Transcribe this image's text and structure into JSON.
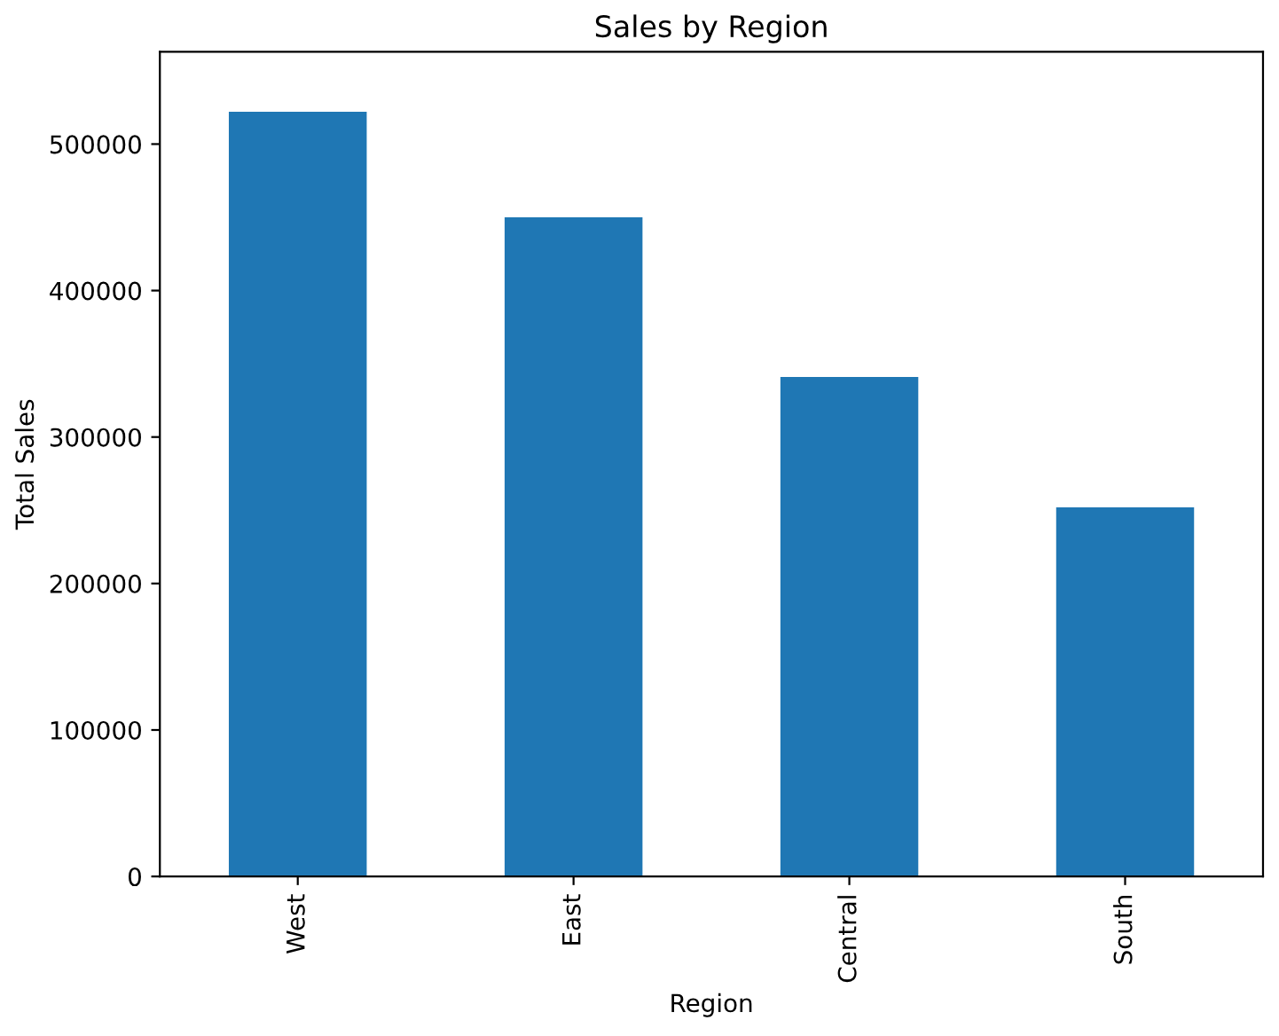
{
  "chart_data": {
    "type": "bar",
    "title": "Sales by Region",
    "xlabel": "Region",
    "ylabel": "Total Sales",
    "categories": [
      "West",
      "East",
      "Central",
      "South"
    ],
    "values": [
      522000,
      450000,
      341000,
      252000
    ],
    "color": "#1f77b4",
    "ylim": [
      0,
      563000
    ],
    "yticks": [
      0,
      100000,
      200000,
      300000,
      400000,
      500000
    ],
    "grid": false,
    "legend": false
  }
}
